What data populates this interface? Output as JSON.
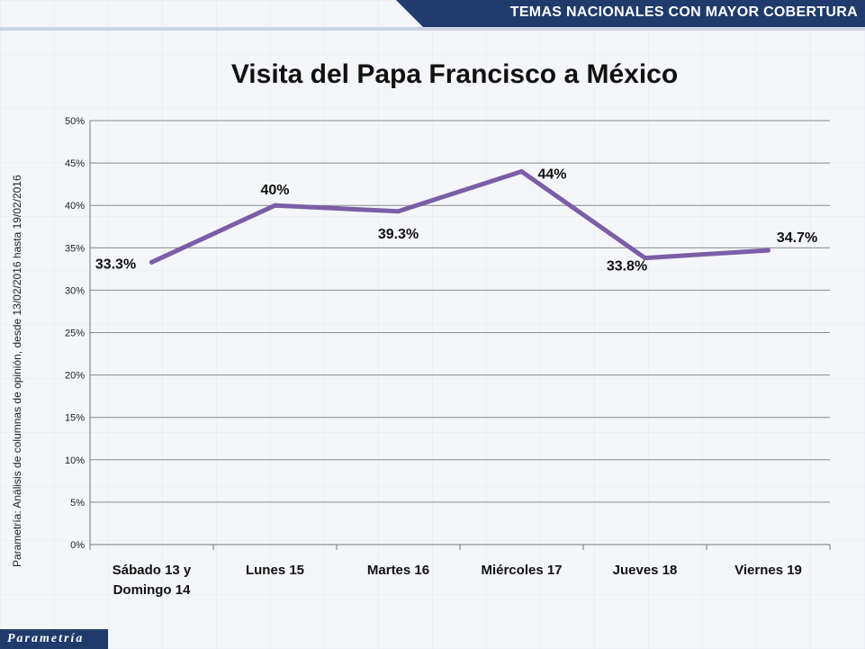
{
  "header": {
    "banner": "TEMAS NACIONALES CON MAYOR COBERTURA"
  },
  "source_note": "Parametría: Análisis de columnas de opinión, desde 13/02/2016 hasta 19/02/2016",
  "logo_text": "Parametría",
  "chart_data": {
    "type": "line",
    "title": "Visita del Papa Francisco a México",
    "xlabel": "",
    "ylabel": "",
    "ylim": [
      0,
      50
    ],
    "yticks": [
      "0%",
      "5%",
      "10%",
      "15%",
      "20%",
      "25%",
      "30%",
      "35%",
      "40%",
      "45%",
      "50%"
    ],
    "categories": [
      [
        "Sábado 13 y",
        "Domingo 14"
      ],
      [
        "Lunes 15"
      ],
      [
        "Martes 16"
      ],
      [
        "Miércoles 17"
      ],
      [
        "Jueves 18"
      ],
      [
        "Viernes 19"
      ]
    ],
    "series": [
      {
        "values": [
          33.3,
          40,
          39.3,
          44,
          33.8,
          34.7
        ],
        "labels": [
          "33.3%",
          "40%",
          "39.3%",
          "44%",
          "33.8%",
          "34.7%"
        ],
        "color": "#7b5ea7"
      }
    ],
    "grid": true,
    "legend": "none"
  }
}
